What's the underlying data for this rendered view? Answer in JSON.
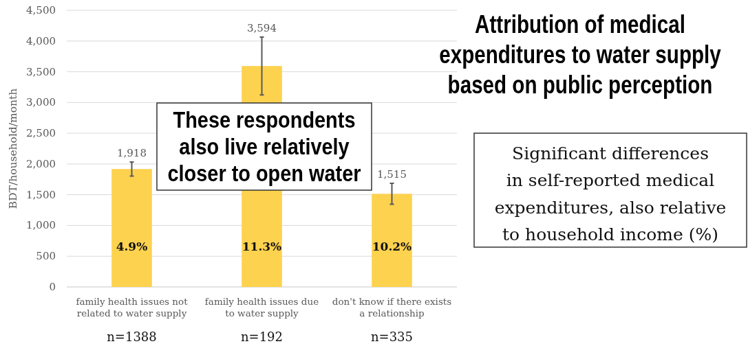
{
  "chart_data": {
    "type": "bar",
    "title": "Attribution of medical\nexpenditures to water supply\nbased on public perception",
    "ylabel": "BDT/household/month",
    "categories": [
      "family health issues not\nrelated to water supply",
      "family health issues due\nto water supply",
      "don't know if there exists\na relationship"
    ],
    "values": [
      1918,
      3594,
      1515
    ],
    "value_labels": [
      "1,918",
      "3,594",
      "1,515"
    ],
    "errors": [
      115,
      470,
      170
    ],
    "color": "#fdd24f",
    "ylim": [
      0,
      4500
    ],
    "yticks": [
      0,
      500,
      {
        "value": 1000,
        "label": "1,000"
      },
      {
        "value": 1500,
        "label": "1,500"
      },
      {
        "value": 2000,
        "label": "2,000"
      },
      {
        "value": 2500,
        "label": "2,500"
      },
      {
        "value": 3000,
        "label": "3,000"
      },
      {
        "value": 3500,
        "label": "3,500"
      },
      {
        "value": 4000,
        "label": "4,000"
      },
      {
        "value": 4500,
        "label": "4,500"
      }
    ],
    "grid": "y",
    "annotations": [
      "4.9%",
      "11.3%",
      "10.2%",
      "n=1388",
      "n=192",
      "n=335",
      "These respondents\nalso live relatively\ncloser to open water",
      "Significant differences\nin self-reported medical\nexpenditures, also relative\nto household income (%)"
    ]
  }
}
